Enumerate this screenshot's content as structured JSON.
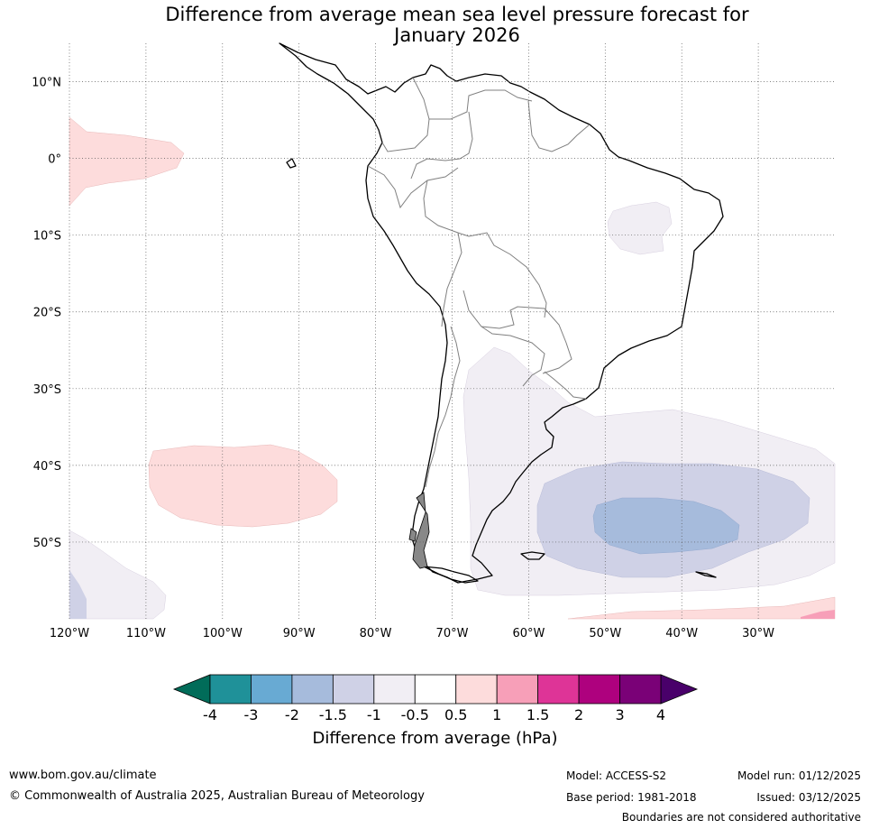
{
  "title_line1": "Difference from average mean sea level pressure forecast for",
  "title_line2": "January 2026",
  "map": {
    "lon_labels": [
      "120°W",
      "110°W",
      "100°W",
      "90°W",
      "80°W",
      "70°W",
      "60°W",
      "50°W",
      "40°W",
      "30°W"
    ],
    "lat_labels": [
      "10°N",
      "0°",
      "10°S",
      "20°S",
      "30°S",
      "40°S",
      "50°S"
    ],
    "lon_values": [
      -120,
      -110,
      -100,
      -90,
      -80,
      -70,
      -60,
      -50,
      -40,
      -30
    ],
    "lat_values": [
      10,
      0,
      -10,
      -20,
      -30,
      -40,
      -50
    ],
    "extent": {
      "lon_min": -120,
      "lon_max": -20,
      "lat_min": -60,
      "lat_max": 15
    }
  },
  "colorbar": {
    "title": "Difference from average (hPa)",
    "ticks": [
      "-4",
      "-3",
      "-2",
      "-1.5",
      "-1",
      "-0.5",
      "0.5",
      "1",
      "1.5",
      "2",
      "3",
      "4"
    ],
    "colors": [
      "#1f9199",
      "#68aad3",
      "#a6bbdc",
      "#cfd1e6",
      "#f1eef4",
      "#ffffff",
      "#fddcdc",
      "#f79fb8",
      "#de3497",
      "#ae017e",
      "#7a0177"
    ],
    "under_color": "#016c59",
    "over_color": "#49006a"
  },
  "colors": {
    "pos_05": "#fddcdc",
    "pos_15": "#f79fb8",
    "neg_05": "#f1eef4",
    "neg_10": "#cfd1e6",
    "neg_15": "#a6bbdc"
  },
  "footer": {
    "website": "www.bom.gov.au/climate",
    "copyright": "© Commonwealth of Australia 2025, Australian Bureau of Meteorology",
    "model": "Model: ACCESS-S2",
    "base_period": "Base period: 1981-2018",
    "model_run": "Model run: 01/12/2025",
    "issued": "Issued: 03/12/2025",
    "boundaries": "Boundaries are not considered authoritative"
  }
}
